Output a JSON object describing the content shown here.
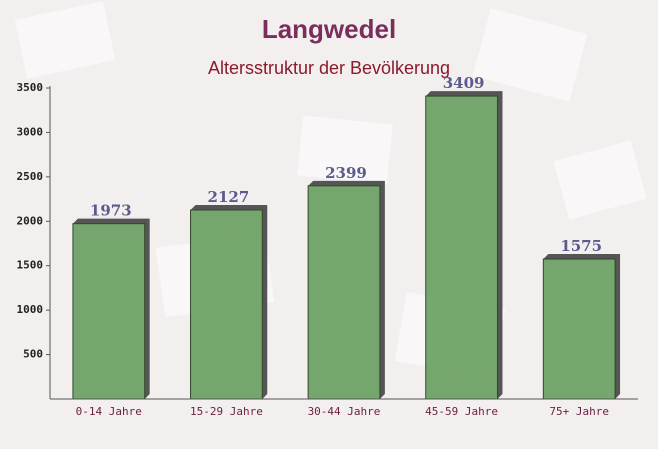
{
  "chart_data": {
    "type": "bar",
    "title": "Langwedel",
    "subtitle": "Altersstruktur der Bevölkerung",
    "categories": [
      "0-14 Jahre",
      "15-29 Jahre",
      "30-44 Jahre",
      "45-59 Jahre",
      "75+ Jahre"
    ],
    "values": [
      1973,
      2127,
      2399,
      3409,
      1575
    ],
    "color": "#6aa062",
    "ylim": [
      0,
      3500
    ],
    "yticks": [
      500,
      1000,
      1500,
      2000,
      2500,
      3000,
      3500
    ],
    "grid": false
  }
}
